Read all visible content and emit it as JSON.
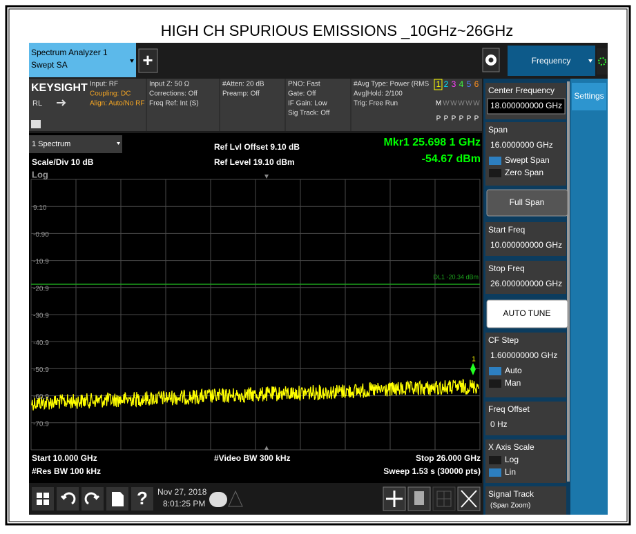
{
  "header": {
    "title": "HIGH CH SPURIOUS EMISSIONS _10GHz~26GHz"
  },
  "tabs": {
    "instrument": "Spectrum Analyzer 1",
    "mode": "Swept SA",
    "plus": "+",
    "menu": "Frequency",
    "side_tab": "Settings"
  },
  "status": {
    "brand": "KEYSIGHT",
    "rl": "RL",
    "input": "Input: RF",
    "coupling": "Coupling: DC",
    "align": "Align: Auto/No RF",
    "input_z": "Input Z: 50 Ω",
    "corrections": "Corrections: Off",
    "freq_ref": "Freq Ref: Int (S)",
    "atten": "#Atten: 20 dB",
    "preamp": "Preamp: Off",
    "pno": "PNO: Fast",
    "gate": "Gate: Off",
    "if_gain": "IF Gain: Low",
    "sig_track": "Sig Track: Off",
    "avg_type": "#Avg Type: Power (RMS",
    "avg_hold": "Avg|Hold: 2/100",
    "trig": "Trig: Free Run",
    "traces": [
      "1",
      "2",
      "3",
      "4",
      "5",
      "6"
    ],
    "trace_modes": [
      "M",
      "W",
      "W",
      "W",
      "W",
      "W"
    ],
    "detectors": [
      "P",
      "P",
      "P",
      "P",
      "P",
      "P"
    ]
  },
  "plot": {
    "window": "1 Spectrum",
    "scale": "Scale/Div 10 dB",
    "log": "Log",
    "ref_offset": "Ref Lvl Offset 9.10 dB",
    "ref_level": "Ref Level 19.10 dBm",
    "marker": "Mkr1  25.698 1 GHz",
    "marker_level": "-54.67 dBm",
    "marker_id": "1",
    "y_labels": [
      "9.10",
      "-0.90",
      "-10.9",
      "-20.9",
      "-30.9",
      "-40.9",
      "-50.9",
      "-60.9",
      "-70.9"
    ],
    "display_line": "DL1 -20.34 dBm",
    "start": "Start 10.000 GHz",
    "res_bw": "#Res BW 100 kHz",
    "video_bw": "#Video BW 300 kHz",
    "stop": "Stop 26.000 GHz",
    "sweep": "Sweep 1.53 s (30000 pts)"
  },
  "taskbar": {
    "help": "?",
    "date": "Nov 27, 2018",
    "time": "8:01:25 PM"
  },
  "menu_panel": [
    {
      "label": "Center Frequency",
      "value": "18.000000000 GHz"
    },
    {
      "label": "Span",
      "value": "16.0000000 GHz",
      "options": [
        "Swept Span",
        "Zero Span"
      ],
      "selected": 0
    },
    {
      "button": "Full Span"
    },
    {
      "label": "Start Freq",
      "value": "10.000000000 GHz"
    },
    {
      "label": "Stop Freq",
      "value": "26.000000000 GHz"
    },
    {
      "button": "AUTO TUNE"
    },
    {
      "label": "CF Step",
      "value": "1.600000000 GHz",
      "options": [
        "Auto",
        "Man"
      ],
      "selected": 0
    },
    {
      "label": "Freq Offset",
      "value": "0 Hz"
    },
    {
      "label": "X Axis Scale",
      "options": [
        "Log",
        "Lin"
      ],
      "selected": 1
    },
    {
      "label": "Signal Track",
      "value": "(Span Zoom)"
    }
  ]
}
